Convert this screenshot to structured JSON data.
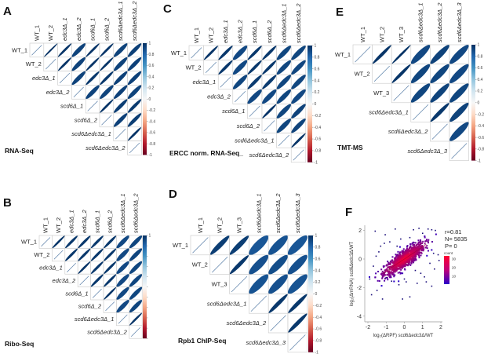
{
  "chart_data": [
    {
      "panel": "A",
      "type": "heatmap",
      "subtype": "correlation-ellipse-upper-triangle",
      "title": "RNA-Seq",
      "labels": [
        "WT_1",
        "WT_2",
        "edc3Δ_1",
        "edc3Δ_2",
        "scd6Δ_1",
        "scd6Δ_2",
        "scd6Δedc3Δ_1",
        "scd6Δedc3Δ_2"
      ],
      "italic": [
        false,
        false,
        true,
        true,
        true,
        true,
        true,
        true
      ],
      "matrix": [
        [
          1,
          0.99,
          0.98,
          0.93,
          0.98,
          0.98,
          0.93,
          0.94
        ],
        [
          0.99,
          1,
          0.98,
          0.93,
          0.98,
          0.98,
          0.93,
          0.94
        ],
        [
          0.98,
          0.98,
          1,
          0.93,
          0.97,
          0.97,
          0.94,
          0.94
        ],
        [
          0.93,
          0.93,
          0.93,
          1,
          0.93,
          0.93,
          0.94,
          0.93
        ],
        [
          0.98,
          0.98,
          0.97,
          0.93,
          1,
          0.98,
          0.95,
          0.96
        ],
        [
          0.98,
          0.98,
          0.97,
          0.93,
          0.98,
          1,
          0.94,
          0.95
        ],
        [
          0.93,
          0.93,
          0.94,
          0.94,
          0.95,
          0.94,
          1,
          0.98
        ],
        [
          0.94,
          0.94,
          0.94,
          0.93,
          0.96,
          0.95,
          0.98,
          1
        ]
      ],
      "colorbar": {
        "range": [
          -1,
          1
        ],
        "ticks": [
          "1",
          "0.8",
          "0.6",
          "0.4",
          "0.2",
          "0",
          "-0.2",
          "-0.4",
          "-0.6",
          "-0.8",
          "-1"
        ]
      }
    },
    {
      "panel": "B",
      "type": "heatmap",
      "subtype": "correlation-ellipse-upper-triangle",
      "title": "Ribo-Seq",
      "labels": [
        "WT_1",
        "WT_2",
        "edc3Δ_1",
        "edc3Δ_2",
        "scd6Δ_1",
        "scd6Δ_2",
        "scd6Δedc3Δ_1",
        "scd6Δedc3Δ_2"
      ],
      "italic": [
        false,
        false,
        true,
        true,
        true,
        true,
        true,
        true
      ],
      "matrix": [
        [
          1,
          0.98,
          0.97,
          0.97,
          0.97,
          0.97,
          0.91,
          0.92
        ],
        [
          0.98,
          1,
          0.97,
          0.97,
          0.97,
          0.97,
          0.91,
          0.92
        ],
        [
          0.97,
          0.97,
          1,
          0.98,
          0.97,
          0.97,
          0.91,
          0.92
        ],
        [
          0.97,
          0.97,
          0.98,
          1,
          0.97,
          0.97,
          0.91,
          0.92
        ],
        [
          0.97,
          0.97,
          0.97,
          0.97,
          1,
          0.98,
          0.91,
          0.92
        ],
        [
          0.97,
          0.97,
          0.97,
          0.97,
          0.98,
          1,
          0.91,
          0.92
        ],
        [
          0.91,
          0.91,
          0.91,
          0.91,
          0.91,
          0.91,
          1,
          0.98
        ],
        [
          0.92,
          0.92,
          0.92,
          0.92,
          0.92,
          0.92,
          0.98,
          1
        ]
      ],
      "colorbar": {
        "range": [
          -1,
          1
        ],
        "ticks": [
          "1"
        ]
      }
    },
    {
      "panel": "C",
      "type": "heatmap",
      "subtype": "correlation-ellipse-upper-triangle",
      "title": "ERCC norm. RNA-Seq_",
      "labels": [
        "WT_1",
        "WT_2",
        "edc3Δ_1",
        "edc3Δ_2",
        "scd6Δ_1",
        "scd6Δ_2",
        "scd6Δedc3Δ_1",
        "scd6Δedc3Δ_2"
      ],
      "italic": [
        false,
        false,
        true,
        true,
        true,
        true,
        true,
        true
      ],
      "matrix": [
        [
          1,
          0.98,
          0.97,
          0.91,
          0.97,
          0.97,
          0.92,
          0.92
        ],
        [
          0.98,
          1,
          0.97,
          0.91,
          0.97,
          0.97,
          0.92,
          0.92
        ],
        [
          0.97,
          0.97,
          1,
          0.92,
          0.96,
          0.96,
          0.92,
          0.92
        ],
        [
          0.91,
          0.91,
          0.92,
          1,
          0.91,
          0.91,
          0.92,
          0.91
        ],
        [
          0.97,
          0.97,
          0.96,
          0.91,
          1,
          0.98,
          0.92,
          0.93
        ],
        [
          0.97,
          0.97,
          0.96,
          0.91,
          0.98,
          1,
          0.92,
          0.93
        ],
        [
          0.92,
          0.92,
          0.92,
          0.92,
          0.92,
          0.92,
          1,
          0.98
        ],
        [
          0.92,
          0.92,
          0.92,
          0.91,
          0.93,
          0.93,
          0.98,
          1
        ]
      ],
      "colorbar": {
        "range": [
          -1,
          1
        ],
        "ticks": [
          "1",
          "0.8",
          "0.6",
          "0.4",
          "0.2",
          "0",
          "-0.2",
          "-0.4",
          "-0.6",
          "-0.8",
          "-1"
        ]
      }
    },
    {
      "panel": "D",
      "type": "heatmap",
      "subtype": "correlation-ellipse-upper-triangle",
      "title": "Rpb1 ChIP-Seq",
      "labels": [
        "WT_1",
        "WT_2",
        "WT_3",
        "scd6Δedc3Δ_1",
        "scd6Δedc3Δ_2",
        "scd6Δedc3Δ_3"
      ],
      "italic": [
        false,
        false,
        false,
        true,
        true,
        true
      ],
      "matrix": [
        [
          1,
          0.95,
          0.95,
          0.86,
          0.87,
          0.86
        ],
        [
          0.95,
          1,
          0.97,
          0.88,
          0.89,
          0.88
        ],
        [
          0.95,
          0.97,
          1,
          0.87,
          0.88,
          0.87
        ],
        [
          0.86,
          0.88,
          0.87,
          1,
          0.97,
          0.97
        ],
        [
          0.87,
          0.89,
          0.88,
          0.97,
          1,
          0.97
        ],
        [
          0.86,
          0.88,
          0.87,
          0.97,
          0.97,
          1
        ]
      ],
      "colorbar": {
        "range": [
          -1,
          1
        ],
        "ticks": [
          "1",
          "0.8",
          "0.6",
          "0.4",
          "0.2",
          "0",
          "-0.2",
          "-0.4",
          "-0.6",
          "-0.8",
          "-1"
        ]
      }
    },
    {
      "panel": "E",
      "type": "heatmap",
      "subtype": "correlation-ellipse-upper-triangle",
      "title": "TMT-MS",
      "labels": [
        "WT_1",
        "WT_2",
        "WT_3",
        "scd6Δedc3Δ_1",
        "scd6Δedc3Δ_2",
        "scd6Δedc3Δ_3"
      ],
      "italic": [
        false,
        false,
        false,
        true,
        true,
        true
      ],
      "matrix": [
        [
          1,
          0.98,
          0.99,
          0.91,
          0.93,
          0.91
        ],
        [
          0.98,
          1,
          0.98,
          0.92,
          0.92,
          0.91
        ],
        [
          0.99,
          0.98,
          1,
          0.92,
          0.93,
          0.92
        ],
        [
          0.91,
          0.92,
          0.92,
          1,
          0.97,
          0.93
        ],
        [
          0.93,
          0.92,
          0.93,
          0.97,
          1,
          0.91
        ],
        [
          0.91,
          0.91,
          0.92,
          0.93,
          0.91,
          1
        ]
      ],
      "colorbar": {
        "range": [
          -1,
          1
        ],
        "ticks": [
          "1",
          "0.8",
          "0.6",
          "0.4",
          "0.2",
          "0",
          "-0.2",
          "-0.4",
          "-0.6",
          "-0.8",
          "-1"
        ]
      }
    },
    {
      "panel": "F",
      "type": "scatter",
      "subtype": "density-hexbin-scatter",
      "title": "",
      "xlabel": "log₂(ΔRPF) scd6Δedc3Δ/WT",
      "ylabel": "log₂(ΔmRNA) scd6Δedc3Δ/WT",
      "xlim": [
        -2,
        2
      ],
      "ylim": [
        -4,
        2.3
      ],
      "xticks": [
        "-2",
        "-1",
        "0",
        "1",
        "2"
      ],
      "yticks": [
        "2",
        "0",
        "-2",
        "-4"
      ],
      "stats": {
        "r": "r=0.81",
        "n": "N= 5835",
        "p": "P= 0"
      },
      "legend": {
        "title": "count",
        "ticks": [
          "30",
          "20",
          "10"
        ],
        "range": [
          1,
          35
        ],
        "placement": "right",
        "colors": [
          "#2a00c8",
          "#ff0030"
        ]
      },
      "trend": {
        "slope": 0.85,
        "intercept": 0.0
      },
      "outliers": [
        [
          -1.6,
          1.95
        ],
        [
          -1.05,
          1.7
        ],
        [
          -0.5,
          2.1
        ],
        [
          0.5,
          2.05
        ],
        [
          0.8,
          2.15
        ],
        [
          1.3,
          2.1
        ],
        [
          1.5,
          2.05
        ],
        [
          1.7,
          2.0
        ],
        [
          -0.8,
          1.2
        ],
        [
          -1.3,
          0.9
        ],
        [
          -1.4,
          0.5
        ],
        [
          -1.55,
          0.2
        ],
        [
          -1.7,
          -0.5
        ],
        [
          -1.9,
          -1.4
        ],
        [
          -1.8,
          -2.5
        ],
        [
          -1.5,
          -2.2
        ],
        [
          -1.2,
          -2.8
        ],
        [
          -0.1,
          -2.8
        ],
        [
          0.3,
          -2.65
        ],
        [
          0.7,
          -1.7
        ],
        [
          1.2,
          -1.6
        ],
        [
          1.5,
          -1.9
        ],
        [
          1.65,
          -0.7
        ],
        [
          1.85,
          0.3
        ],
        [
          1.9,
          -0.1
        ],
        [
          0.0,
          -1.4
        ],
        [
          0.1,
          -1.6
        ],
        [
          -0.3,
          -1.8
        ],
        [
          -0.7,
          -1.55
        ],
        [
          -1.0,
          -1.3
        ],
        [
          -1.1,
          1.1
        ],
        [
          1.0,
          1.8
        ],
        [
          0.3,
          1.5
        ],
        [
          -0.2,
          1.4
        ],
        [
          1.4,
          -0.3
        ],
        [
          1.6,
          0.4
        ],
        [
          -0.4,
          0.9
        ],
        [
          0.6,
          -0.8
        ],
        [
          0.9,
          -1.0
        ],
        [
          1.1,
          -1.25
        ]
      ]
    }
  ],
  "panel_letters": {
    "A": "A",
    "B": "B",
    "C": "C",
    "D": "D",
    "E": "E",
    "F": "F"
  }
}
